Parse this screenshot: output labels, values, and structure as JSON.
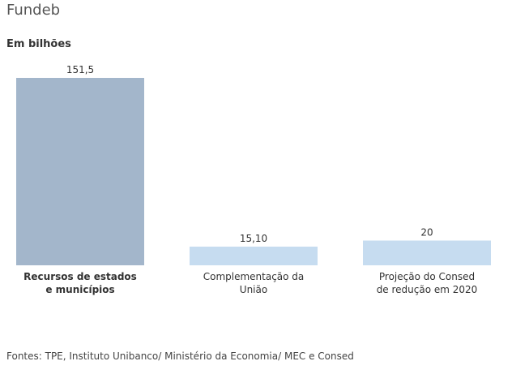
{
  "header": {
    "title": "Fundeb",
    "subtitle": "Em bilhões"
  },
  "chart_data": {
    "type": "bar",
    "categories": [
      [
        "Recursos de estados",
        "e municípios"
      ],
      [
        "Complementação da",
        "União"
      ],
      [
        "Projeção do Consed",
        "de redução em 2020"
      ]
    ],
    "values": [
      151.5,
      15.1,
      20
    ],
    "value_labels": [
      "151,5",
      "15,10",
      "20"
    ],
    "colors": [
      "#a3b6cb",
      "#c6dcf0",
      "#c6dcf0"
    ],
    "ylim": [
      0,
      151.5
    ],
    "grid": false,
    "legend": "none"
  },
  "footer": {
    "source": "Fontes: TPE, Instituto Unibanco/ Ministério da Economia/ MEC e Consed"
  }
}
